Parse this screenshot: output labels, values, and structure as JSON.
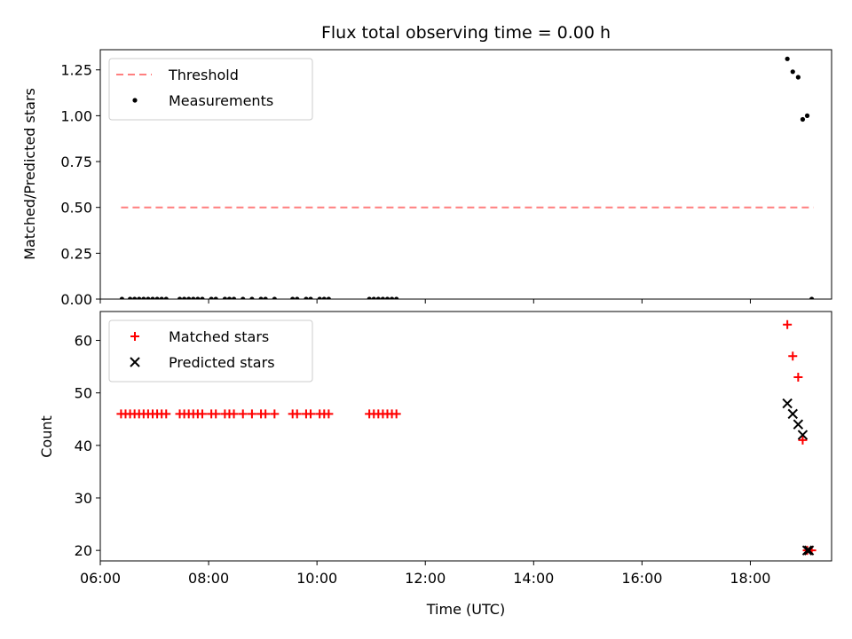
{
  "chart_data": [
    {
      "type": "scatter",
      "title": "Flux total observing time = 0.00 h",
      "ylabel": "Matched/Predicted stars",
      "xlabel": "",
      "xlim": [
        "06:00",
        "19:30"
      ],
      "ylim": [
        0,
        1.36
      ],
      "yticks": [
        "0.00",
        "0.25",
        "0.50",
        "0.75",
        "1.00",
        "1.25"
      ],
      "legend_position": "upper-left",
      "threshold": {
        "name": "Threshold",
        "value": 0.5,
        "x_range": [
          "06:23",
          "19:10"
        ],
        "color": "#ff7f7f",
        "style": "dashed"
      },
      "series": [
        {
          "name": "Measurements",
          "color": "#000000",
          "marker": "dot",
          "points": [
            [
              "06:24",
              0
            ],
            [
              "06:33",
              0
            ],
            [
              "06:38",
              0
            ],
            [
              "06:43",
              0
            ],
            [
              "06:48",
              0
            ],
            [
              "06:53",
              0
            ],
            [
              "06:58",
              0
            ],
            [
              "07:03",
              0
            ],
            [
              "07:08",
              0
            ],
            [
              "07:13",
              0
            ],
            [
              "07:28",
              0
            ],
            [
              "07:33",
              0
            ],
            [
              "07:38",
              0
            ],
            [
              "07:43",
              0
            ],
            [
              "07:48",
              0
            ],
            [
              "07:53",
              0
            ],
            [
              "08:03",
              0
            ],
            [
              "08:08",
              0
            ],
            [
              "08:18",
              0
            ],
            [
              "08:23",
              0
            ],
            [
              "08:28",
              0
            ],
            [
              "08:38",
              0
            ],
            [
              "08:48",
              0
            ],
            [
              "08:58",
              0
            ],
            [
              "09:03",
              0
            ],
            [
              "09:13",
              0
            ],
            [
              "09:33",
              0
            ],
            [
              "09:38",
              0
            ],
            [
              "09:48",
              0
            ],
            [
              "09:53",
              0
            ],
            [
              "10:03",
              0
            ],
            [
              "10:08",
              0
            ],
            [
              "10:13",
              0
            ],
            [
              "10:58",
              0
            ],
            [
              "11:03",
              0
            ],
            [
              "11:08",
              0
            ],
            [
              "11:13",
              0
            ],
            [
              "11:18",
              0
            ],
            [
              "11:23",
              0
            ],
            [
              "11:28",
              0
            ],
            [
              "18:41",
              1.31
            ],
            [
              "18:47",
              1.24
            ],
            [
              "18:53",
              1.21
            ],
            [
              "18:58",
              0.98
            ],
            [
              "19:03",
              1.0
            ],
            [
              "19:08",
              0
            ]
          ]
        }
      ]
    },
    {
      "type": "scatter",
      "title": "",
      "ylabel": "Count",
      "xlabel": "Time (UTC)",
      "xlim": [
        "06:00",
        "19:30"
      ],
      "ylim": [
        18,
        65.5
      ],
      "yticks": [
        "20",
        "30",
        "40",
        "50",
        "60"
      ],
      "xticks": [
        "06:00",
        "08:00",
        "10:00",
        "12:00",
        "14:00",
        "16:00",
        "18:00"
      ],
      "legend_position": "upper-left",
      "series": [
        {
          "name": "Matched stars",
          "color": "#ff0000",
          "marker": "plus",
          "points": [
            [
              "06:23",
              46
            ],
            [
              "06:28",
              46
            ],
            [
              "06:33",
              46
            ],
            [
              "06:38",
              46
            ],
            [
              "06:43",
              46
            ],
            [
              "06:48",
              46
            ],
            [
              "06:53",
              46
            ],
            [
              "06:58",
              46
            ],
            [
              "07:03",
              46
            ],
            [
              "07:08",
              46
            ],
            [
              "07:13",
              46
            ],
            [
              "07:28",
              46
            ],
            [
              "07:33",
              46
            ],
            [
              "07:38",
              46
            ],
            [
              "07:43",
              46
            ],
            [
              "07:48",
              46
            ],
            [
              "07:53",
              46
            ],
            [
              "08:03",
              46
            ],
            [
              "08:08",
              46
            ],
            [
              "08:18",
              46
            ],
            [
              "08:23",
              46
            ],
            [
              "08:28",
              46
            ],
            [
              "08:38",
              46
            ],
            [
              "08:48",
              46
            ],
            [
              "08:58",
              46
            ],
            [
              "09:03",
              46
            ],
            [
              "09:13",
              46
            ],
            [
              "09:33",
              46
            ],
            [
              "09:38",
              46
            ],
            [
              "09:48",
              46
            ],
            [
              "09:53",
              46
            ],
            [
              "10:03",
              46
            ],
            [
              "10:08",
              46
            ],
            [
              "10:13",
              46
            ],
            [
              "10:58",
              46
            ],
            [
              "11:03",
              46
            ],
            [
              "11:08",
              46
            ],
            [
              "11:13",
              46
            ],
            [
              "11:18",
              46
            ],
            [
              "11:23",
              46
            ],
            [
              "11:28",
              46
            ],
            [
              "18:41",
              63
            ],
            [
              "18:47",
              57
            ],
            [
              "18:53",
              53
            ],
            [
              "18:58",
              41
            ],
            [
              "19:03",
              20
            ],
            [
              "19:08",
              20
            ]
          ]
        },
        {
          "name": "Predicted stars",
          "color": "#000000",
          "marker": "x",
          "points": [
            [
              "18:41",
              48
            ],
            [
              "18:47",
              46
            ],
            [
              "18:53",
              44
            ],
            [
              "18:58",
              42
            ],
            [
              "19:03",
              20
            ],
            [
              "19:05",
              20
            ]
          ]
        }
      ]
    }
  ]
}
